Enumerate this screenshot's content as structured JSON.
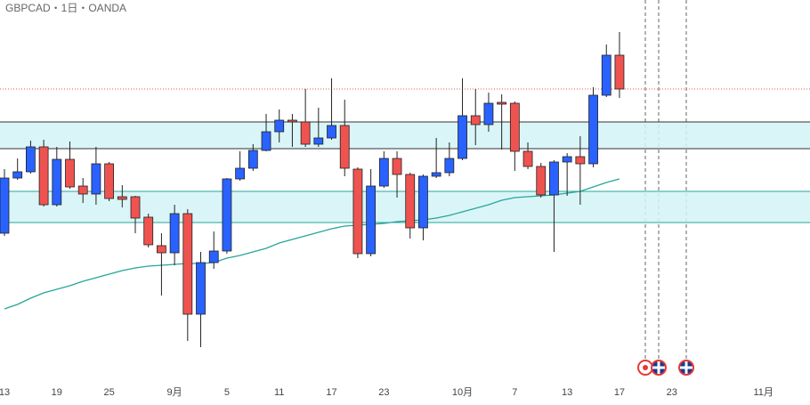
{
  "chart_data": {
    "type": "candlestick",
    "title": "GBPCAD・1日・OANDA",
    "xlim": [
      -0.34,
      61.56
    ],
    "ylim": [
      0,
      430
    ],
    "xticks": [
      {
        "value": 0,
        "label": "13"
      },
      {
        "value": 4,
        "label": "19"
      },
      {
        "value": 8,
        "label": "25"
      },
      {
        "value": 13,
        "label": "9月"
      },
      {
        "value": 17,
        "label": "5"
      },
      {
        "value": 21,
        "label": "11"
      },
      {
        "value": 25,
        "label": "17"
      },
      {
        "value": 29,
        "label": "23"
      },
      {
        "value": 35,
        "label": "10月"
      },
      {
        "value": 39,
        "label": "7"
      },
      {
        "value": 43,
        "label": "13"
      },
      {
        "value": 47,
        "label": "17"
      },
      {
        "value": 51,
        "label": "23"
      },
      {
        "value": 58,
        "label": "11月"
      }
    ],
    "up_color": "#2962ff",
    "down_color": "#ef5350",
    "open": [
      168,
      230,
      237,
      265,
      200,
      251,
      221,
      212,
      246,
      209,
      209,
      186,
      154,
      146,
      190,
      77,
      135,
      148,
      229,
      241,
      261,
      282,
      295,
      293,
      268,
      275,
      289,
      240,
      145,
      221,
      252,
      234,
      174,
      232,
      236,
      252,
      300,
      290,
      315,
      314,
      260,
      243,
      211,
      248,
      254,
      246,
      323,
      368
    ],
    "high": [
      240,
      252,
      272,
      273,
      265,
      271,
      230,
      265,
      248,
      222,
      210,
      190,
      168,
      200,
      195,
      147,
      170,
      230,
      260,
      268,
      302,
      307,
      302,
      330,
      309,
      342,
      318,
      242,
      240,
      260,
      260,
      236,
      234,
      275,
      270,
      342,
      330,
      326,
      324,
      316,
      270,
      247,
      250,
      258,
      277,
      332,
      380,
      394
    ],
    "low": [
      165,
      228,
      235,
      198,
      198,
      218,
      202,
      200,
      204,
      197,
      168,
      152,
      98,
      132,
      47,
      40,
      128,
      145,
      227,
      238,
      260,
      270,
      265,
      265,
      265,
      273,
      232,
      140,
      142,
      219,
      208,
      162,
      160,
      230,
      232,
      250,
      267,
      282,
      262,
      238,
      240,
      208,
      147,
      210,
      200,
      242,
      321,
      320
    ],
    "close": [
      230,
      237,
      265,
      200,
      251,
      220,
      212,
      246,
      207,
      206,
      185,
      155,
      146,
      190,
      77,
      135,
      148,
      229,
      241,
      261,
      282,
      295,
      293,
      268,
      275,
      289,
      241,
      145,
      221,
      252,
      234,
      174,
      232,
      236,
      252,
      300,
      290,
      314,
      313,
      260,
      243,
      211,
      248,
      254,
      246,
      323,
      368,
      330
    ],
    "moving_average": {
      "color": "#26a69a",
      "values": [
        83,
        88,
        95,
        101,
        105,
        109,
        114,
        118,
        122,
        126,
        129,
        131,
        132,
        133,
        134,
        134,
        135,
        140,
        143,
        147,
        151,
        157,
        161,
        165,
        169,
        173,
        176,
        177,
        178,
        179,
        181,
        182,
        183,
        185,
        188,
        192,
        196,
        200,
        205,
        208,
        209,
        210,
        211,
        213,
        215,
        220,
        225,
        229
      ]
    },
    "zones": [
      {
        "range": [
          263,
          293
        ],
        "color": "#333333"
      },
      {
        "range": [
          180,
          215
        ],
        "color": "#26a69a"
      }
    ],
    "last_price": 330,
    "last_price_color": "#ef5350"
  }
}
